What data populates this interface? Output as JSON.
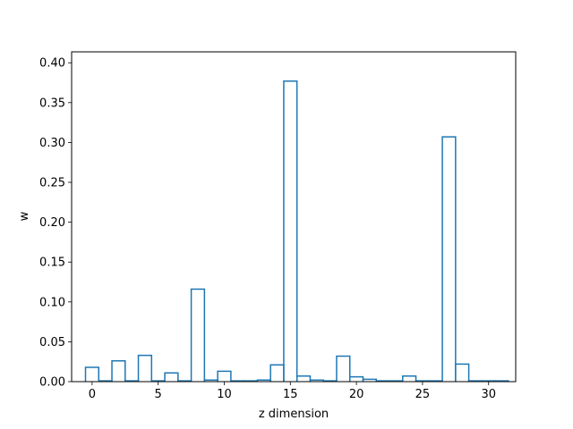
{
  "chart_data": {
    "type": "bar",
    "style": "step-histogram",
    "xlabel": "z dimension",
    "ylabel": "w",
    "xlim": [
      -1.55,
      32.05
    ],
    "ylim": [
      0,
      0.4137
    ],
    "x_ticks": [
      0,
      5,
      10,
      15,
      20,
      25,
      30
    ],
    "y_ticks": [
      0.0,
      0.05,
      0.1,
      0.15,
      0.2,
      0.25,
      0.3,
      0.35,
      0.4
    ],
    "y_tick_labels": [
      "0.00",
      "0.05",
      "0.10",
      "0.15",
      "0.20",
      "0.25",
      "0.30",
      "0.35",
      "0.40"
    ],
    "categories": [
      0,
      1,
      2,
      3,
      4,
      5,
      6,
      7,
      8,
      9,
      10,
      11,
      12,
      13,
      14,
      15,
      16,
      17,
      18,
      19,
      20,
      21,
      22,
      23,
      24,
      25,
      26,
      27,
      28,
      29,
      30,
      31
    ],
    "values": [
      0.018,
      0.001,
      0.026,
      0.001,
      0.033,
      0.001,
      0.011,
      0.001,
      0.116,
      0.002,
      0.013,
      0.001,
      0.001,
      0.002,
      0.021,
      0.377,
      0.007,
      0.002,
      0.001,
      0.032,
      0.006,
      0.003,
      0.001,
      0.001,
      0.007,
      0.001,
      0.001,
      0.307,
      0.022,
      0.001,
      0.001,
      0.001
    ],
    "line_color": "#1f77b4",
    "grid": false,
    "legend": false
  }
}
